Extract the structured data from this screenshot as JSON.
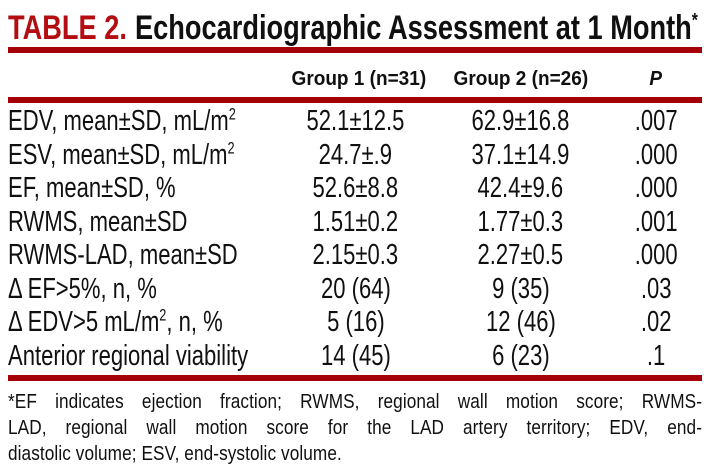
{
  "title": {
    "label": "TABLE 2.",
    "text": "Echocardiographic Assessment at 1 Month",
    "superscript": "*"
  },
  "table": {
    "columns": [
      "Group 1 (n=31)",
      "Group 2 (n=26)",
      "P"
    ],
    "rows": [
      {
        "label": {
          "pre": "EDV, mean±SD, mL/m",
          "sup": "2",
          "post": ""
        },
        "group1": "52.1±12.5",
        "group2": "62.9±16.8",
        "p": ".007"
      },
      {
        "label": {
          "pre": "ESV, mean±SD, mL/m",
          "sup": "2",
          "post": ""
        },
        "group1": "24.7±.9",
        "group2": "37.1±14.9",
        "p": ".000"
      },
      {
        "label": {
          "pre": "EF, mean±SD, %",
          "sup": "",
          "post": ""
        },
        "group1": "52.6±8.8",
        "group2": "42.4±9.6",
        "p": ".000"
      },
      {
        "label": {
          "pre": "RWMS, mean±SD",
          "sup": "",
          "post": ""
        },
        "group1": "1.51±0.2",
        "group2": "1.77±0.3",
        "p": ".001"
      },
      {
        "label": {
          "pre": "RWMS-LAD, mean±SD",
          "sup": "",
          "post": ""
        },
        "group1": "2.15±0.3",
        "group2": "2.27±0.5",
        "p": ".000"
      },
      {
        "label": {
          "pre": "Δ EF>5%, n, %",
          "sup": "",
          "post": ""
        },
        "group1": "20 (64)",
        "group2": "9 (35)",
        "p": ".03"
      },
      {
        "label": {
          "pre": "Δ EDV>5 mL/m",
          "sup": "2",
          "post": ", n, %"
        },
        "group1": "5 (16)",
        "group2": "12 (46)",
        "p": ".02"
      },
      {
        "label": {
          "pre": "Anterior regional viability",
          "sup": "",
          "post": ""
        },
        "group1": "14 (45)",
        "group2": "6 (23)",
        "p": ".1"
      }
    ]
  },
  "footnote": {
    "lines": [
      "*EF indicates ejection fraction; RWMS, regional wall motion score; RWMS-",
      "LAD, regional wall motion score for the LAD artery territory; EDV, end-",
      "diastolic volume; ESV, end-systolic volume."
    ],
    "full_text": "*EF indicates ejection fraction; RWMS, regional wall motion score; RWMS-LAD, regional wall motion score for the LAD artery territory; EDV, end-diastolic volume; ESV, end-systolic volume."
  },
  "colors": {
    "accent_red": "#b30d12",
    "rule_red": "#a50008",
    "text": "#101010"
  }
}
